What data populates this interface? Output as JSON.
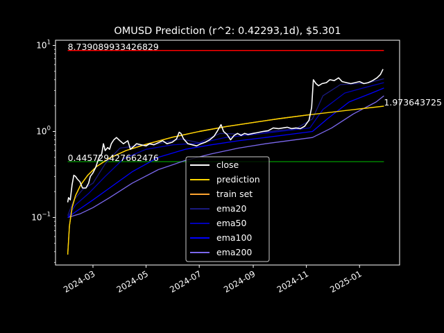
{
  "chart_data": {
    "type": "line",
    "title": "OMUSD Prediction (r^2: 0.42293,1d), $5.301",
    "xlabel": "",
    "ylabel": "",
    "y_scale": "log",
    "ylim": [
      0.028,
      11.5
    ],
    "xlim": [
      "2024-01-18",
      "2025-02-16"
    ],
    "grid": false,
    "legend_position": "lower-center",
    "x_ticks": [
      "2024-03",
      "2024-05",
      "2024-07",
      "2024-09",
      "2024-11",
      "2025-01"
    ],
    "x_tick_dates": [
      "2024-03-01",
      "2024-05-01",
      "2024-07-01",
      "2024-09-01",
      "2024-11-01",
      "2025-01-01"
    ],
    "y_ticks": [
      {
        "value": 0.1,
        "base": "10",
        "exp": "−1"
      },
      {
        "value": 1,
        "base": "10",
        "exp": "0"
      },
      {
        "value": 10,
        "base": "10",
        "exp": "1"
      }
    ],
    "annotations": [
      {
        "text": "8.739089933426829",
        "x": "2024-02-01",
        "y": 8.739
      },
      {
        "text": "0.445729427662476",
        "x": "2024-02-01",
        "y": 0.4457
      },
      {
        "text": "1.973643725",
        "x": "2025-01-29",
        "y": 1.9736
      }
    ],
    "hlines": [
      {
        "y": 8.739089933426829,
        "x0": "2024-02-01",
        "x1": "2025-01-29",
        "color": "#ff0000"
      },
      {
        "y": 0.445729427662476,
        "x0": "2024-02-01",
        "x1": "2025-01-29",
        "color": "#008000"
      }
    ],
    "series": [
      {
        "name": "close",
        "color": "#ffffff",
        "width": 1.6,
        "points": [
          [
            "2024-02-01",
            0.15
          ],
          [
            "2024-02-02",
            0.17
          ],
          [
            "2024-02-04",
            0.16
          ],
          [
            "2024-02-06",
            0.24
          ],
          [
            "2024-02-08",
            0.31
          ],
          [
            "2024-02-10",
            0.3
          ],
          [
            "2024-02-12",
            0.28
          ],
          [
            "2024-02-15",
            0.26
          ],
          [
            "2024-02-18",
            0.22
          ],
          [
            "2024-02-22",
            0.22
          ],
          [
            "2024-02-25",
            0.25
          ],
          [
            "2024-02-27",
            0.3
          ],
          [
            "2024-03-01",
            0.33
          ],
          [
            "2024-03-04",
            0.38
          ],
          [
            "2024-03-08",
            0.5
          ],
          [
            "2024-03-11",
            0.55
          ],
          [
            "2024-03-13",
            0.72
          ],
          [
            "2024-03-15",
            0.6
          ],
          [
            "2024-03-18",
            0.65
          ],
          [
            "2024-03-20",
            0.62
          ],
          [
            "2024-03-22",
            0.72
          ],
          [
            "2024-03-25",
            0.8
          ],
          [
            "2024-03-28",
            0.85
          ],
          [
            "2024-04-01",
            0.78
          ],
          [
            "2024-04-05",
            0.72
          ],
          [
            "2024-04-10",
            0.78
          ],
          [
            "2024-04-13",
            0.62
          ],
          [
            "2024-04-16",
            0.66
          ],
          [
            "2024-04-20",
            0.72
          ],
          [
            "2024-04-25",
            0.7
          ],
          [
            "2024-05-01",
            0.68
          ],
          [
            "2024-05-05",
            0.72
          ],
          [
            "2024-05-10",
            0.7
          ],
          [
            "2024-05-15",
            0.74
          ],
          [
            "2024-05-20",
            0.78
          ],
          [
            "2024-05-25",
            0.72
          ],
          [
            "2024-05-31",
            0.75
          ],
          [
            "2024-06-05",
            0.82
          ],
          [
            "2024-06-08",
            0.98
          ],
          [
            "2024-06-10",
            0.95
          ],
          [
            "2024-06-13",
            0.82
          ],
          [
            "2024-06-18",
            0.72
          ],
          [
            "2024-06-23",
            0.7
          ],
          [
            "2024-06-28",
            0.68
          ],
          [
            "2024-07-03",
            0.72
          ],
          [
            "2024-07-08",
            0.75
          ],
          [
            "2024-07-13",
            0.8
          ],
          [
            "2024-07-18",
            0.88
          ],
          [
            "2024-07-22",
            1.02
          ],
          [
            "2024-07-26",
            1.2
          ],
          [
            "2024-07-29",
            1.0
          ],
          [
            "2024-08-02",
            0.92
          ],
          [
            "2024-08-06",
            0.8
          ],
          [
            "2024-08-10",
            0.9
          ],
          [
            "2024-08-14",
            0.95
          ],
          [
            "2024-08-18",
            0.9
          ],
          [
            "2024-08-22",
            0.95
          ],
          [
            "2024-08-26",
            0.92
          ],
          [
            "2024-09-01",
            0.95
          ],
          [
            "2024-09-06",
            0.97
          ],
          [
            "2024-09-12",
            1.0
          ],
          [
            "2024-09-18",
            1.02
          ],
          [
            "2024-09-24",
            1.1
          ],
          [
            "2024-09-30",
            1.08
          ],
          [
            "2024-10-05",
            1.1
          ],
          [
            "2024-10-10",
            1.12
          ],
          [
            "2024-10-15",
            1.08
          ],
          [
            "2024-10-20",
            1.1
          ],
          [
            "2024-10-25",
            1.08
          ],
          [
            "2024-10-30",
            1.15
          ],
          [
            "2024-11-04",
            1.35
          ],
          [
            "2024-11-07",
            1.9
          ],
          [
            "2024-11-09",
            4.0
          ],
          [
            "2024-11-12",
            3.6
          ],
          [
            "2024-11-15",
            3.4
          ],
          [
            "2024-11-19",
            3.6
          ],
          [
            "2024-11-24",
            3.7
          ],
          [
            "2024-11-28",
            4.0
          ],
          [
            "2024-12-03",
            3.9
          ],
          [
            "2024-12-08",
            4.2
          ],
          [
            "2024-12-12",
            3.8
          ],
          [
            "2024-12-17",
            3.7
          ],
          [
            "2024-12-22",
            3.6
          ],
          [
            "2024-12-27",
            3.7
          ],
          [
            "2025-01-01",
            3.8
          ],
          [
            "2025-01-06",
            3.6
          ],
          [
            "2025-01-11",
            3.7
          ],
          [
            "2025-01-16",
            3.9
          ],
          [
            "2025-01-21",
            4.2
          ],
          [
            "2025-01-25",
            4.6
          ],
          [
            "2025-01-28",
            5.3
          ]
        ]
      },
      {
        "name": "prediction",
        "color": "#ffd700",
        "width": 1.4,
        "points": [
          [
            "2024-02-01",
            0.037
          ],
          [
            "2024-02-03",
            0.08
          ],
          [
            "2024-02-06",
            0.13
          ],
          [
            "2024-02-10",
            0.18
          ],
          [
            "2024-02-16",
            0.24
          ],
          [
            "2024-02-24",
            0.31
          ],
          [
            "2024-03-05",
            0.39
          ],
          [
            "2024-03-20",
            0.49
          ],
          [
            "2024-04-08",
            0.6
          ],
          [
            "2024-05-01",
            0.71
          ],
          [
            "2024-06-01",
            0.86
          ],
          [
            "2024-07-01",
            1.0
          ],
          [
            "2024-08-01",
            1.14
          ],
          [
            "2024-09-01",
            1.27
          ],
          [
            "2024-10-01",
            1.41
          ],
          [
            "2024-11-01",
            1.55
          ],
          [
            "2024-12-01",
            1.68
          ],
          [
            "2025-01-01",
            1.83
          ],
          [
            "2025-01-29",
            1.97
          ]
        ]
      },
      {
        "name": "train set",
        "color": "#ffa530",
        "width": 1.4,
        "points": [
          [
            "2024-02-01",
            0.037
          ],
          [
            "2024-02-03",
            0.08
          ],
          [
            "2024-02-06",
            0.13
          ],
          [
            "2024-02-10",
            0.18
          ],
          [
            "2024-02-16",
            0.24
          ],
          [
            "2024-02-24",
            0.31
          ],
          [
            "2024-03-05",
            0.39
          ],
          [
            "2024-03-20",
            0.49
          ],
          [
            "2024-04-08",
            0.6
          ],
          [
            "2024-05-01",
            0.71
          ],
          [
            "2024-06-01",
            0.86
          ],
          [
            "2024-07-01",
            1.0
          ],
          [
            "2024-08-01",
            1.14
          ],
          [
            "2024-09-01",
            1.27
          ],
          [
            "2024-10-01",
            1.41
          ],
          [
            "2024-11-01",
            1.55
          ],
          [
            "2024-11-06",
            1.57
          ]
        ]
      },
      {
        "name": "ema20",
        "color": "#1a1a80",
        "width": 1.3,
        "points": [
          [
            "2024-02-01",
            0.105
          ],
          [
            "2024-02-08",
            0.16
          ],
          [
            "2024-02-18",
            0.21
          ],
          [
            "2024-03-01",
            0.25
          ],
          [
            "2024-03-15",
            0.42
          ],
          [
            "2024-04-01",
            0.64
          ],
          [
            "2024-04-20",
            0.68
          ],
          [
            "2024-05-15",
            0.72
          ],
          [
            "2024-06-10",
            0.82
          ],
          [
            "2024-07-01",
            0.74
          ],
          [
            "2024-07-25",
            0.95
          ],
          [
            "2024-08-20",
            0.93
          ],
          [
            "2024-09-20",
            1.0
          ],
          [
            "2024-10-20",
            1.08
          ],
          [
            "2024-11-08",
            1.4
          ],
          [
            "2024-11-20",
            2.6
          ],
          [
            "2024-12-10",
            3.5
          ],
          [
            "2025-01-10",
            3.65
          ],
          [
            "2025-01-29",
            4.1
          ]
        ]
      },
      {
        "name": "ema50",
        "color": "#0000b8",
        "width": 1.3,
        "points": [
          [
            "2024-02-01",
            0.1
          ],
          [
            "2024-02-10",
            0.14
          ],
          [
            "2024-02-25",
            0.19
          ],
          [
            "2024-03-15",
            0.3
          ],
          [
            "2024-04-05",
            0.48
          ],
          [
            "2024-05-01",
            0.62
          ],
          [
            "2024-06-01",
            0.7
          ],
          [
            "2024-07-01",
            0.73
          ],
          [
            "2024-07-31",
            0.85
          ],
          [
            "2024-09-01",
            0.92
          ],
          [
            "2024-10-01",
            1.0
          ],
          [
            "2024-11-05",
            1.1
          ],
          [
            "2024-11-20",
            1.8
          ],
          [
            "2024-12-15",
            2.8
          ],
          [
            "2025-01-10",
            3.3
          ],
          [
            "2025-01-29",
            3.7
          ]
        ]
      },
      {
        "name": "ema100",
        "color": "#0000ff",
        "width": 1.3,
        "points": [
          [
            "2024-02-01",
            0.1
          ],
          [
            "2024-02-12",
            0.12
          ],
          [
            "2024-03-01",
            0.16
          ],
          [
            "2024-03-20",
            0.22
          ],
          [
            "2024-04-15",
            0.34
          ],
          [
            "2024-05-15",
            0.5
          ],
          [
            "2024-06-15",
            0.62
          ],
          [
            "2024-07-15",
            0.7
          ],
          [
            "2024-08-15",
            0.78
          ],
          [
            "2024-09-15",
            0.85
          ],
          [
            "2024-10-15",
            0.93
          ],
          [
            "2024-11-08",
            1.0
          ],
          [
            "2024-11-25",
            1.4
          ],
          [
            "2024-12-20",
            2.2
          ],
          [
            "2025-01-15",
            2.8
          ],
          [
            "2025-01-29",
            3.2
          ]
        ]
      },
      {
        "name": "ema200",
        "color": "#7b68ee",
        "width": 1.3,
        "points": [
          [
            "2024-02-01",
            0.1
          ],
          [
            "2024-02-15",
            0.11
          ],
          [
            "2024-03-01",
            0.13
          ],
          [
            "2024-03-20",
            0.17
          ],
          [
            "2024-04-15",
            0.25
          ],
          [
            "2024-05-15",
            0.36
          ],
          [
            "2024-06-15",
            0.46
          ],
          [
            "2024-07-15",
            0.55
          ],
          [
            "2024-08-15",
            0.64
          ],
          [
            "2024-09-15",
            0.72
          ],
          [
            "2024-10-15",
            0.79
          ],
          [
            "2024-11-08",
            0.85
          ],
          [
            "2024-11-30",
            1.1
          ],
          [
            "2024-12-25",
            1.6
          ],
          [
            "2025-01-20",
            2.2
          ],
          [
            "2025-01-29",
            2.6
          ]
        ]
      }
    ]
  }
}
